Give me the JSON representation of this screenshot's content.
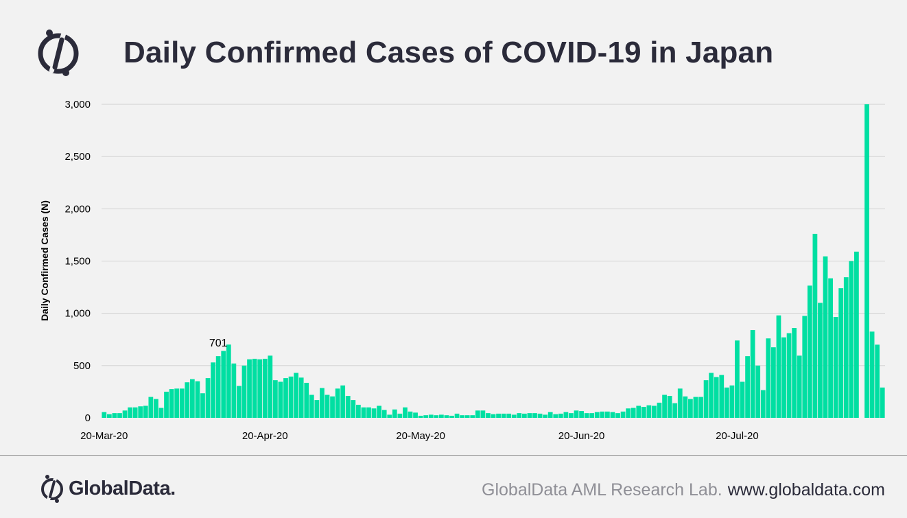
{
  "header": {
    "title": "Daily Confirmed Cases of COVID-19 in Japan"
  },
  "footer": {
    "brand_name": "GlobalData.",
    "source_lab": "GlobalData AML Research Lab.",
    "source_url": "www.globaldata.com"
  },
  "colors": {
    "bar": "#00dfa2",
    "title": "#2b2b3a",
    "grid": "#d0d0d0",
    "background": "#f2f2f2"
  },
  "icons": [
    "globaldata-logo-icon",
    "globaldata-brand-icon"
  ],
  "chart_data": {
    "type": "bar",
    "title": "Daily Confirmed Cases of COVID-19 in Japan",
    "xlabel": "",
    "ylabel": "Daily Confirmed Cases (N)",
    "ylim": [
      0,
      3000
    ],
    "yticks": [
      0,
      500,
      1000,
      1500,
      2000,
      2500,
      3000
    ],
    "ytick_labels": [
      "0",
      "500",
      "1,000",
      "1,500",
      "2,000",
      "2,500",
      "3,000"
    ],
    "xtick_labels": [
      {
        "label": "20-Mar-20",
        "index": 0
      },
      {
        "label": "20-Apr-20",
        "index": 31
      },
      {
        "label": "20-May-20",
        "index": 61
      },
      {
        "label": "20-Jun-20",
        "index": 92
      },
      {
        "label": "20-Jul-20",
        "index": 122
      }
    ],
    "annotations": [
      {
        "text": "701",
        "index": 22
      }
    ],
    "grid": true,
    "start_date": "20-Mar-20",
    "values": [
      55,
      35,
      45,
      45,
      70,
      100,
      100,
      110,
      115,
      200,
      180,
      95,
      250,
      275,
      280,
      280,
      340,
      370,
      350,
      235,
      380,
      530,
      590,
      640,
      701,
      520,
      305,
      500,
      560,
      565,
      560,
      565,
      595,
      360,
      345,
      380,
      395,
      430,
      385,
      335,
      220,
      170,
      285,
      220,
      205,
      280,
      310,
      210,
      170,
      125,
      100,
      100,
      90,
      115,
      75,
      30,
      80,
      40,
      100,
      60,
      50,
      20,
      25,
      30,
      25,
      30,
      25,
      20,
      40,
      25,
      25,
      25,
      70,
      70,
      45,
      35,
      40,
      40,
      40,
      30,
      45,
      40,
      45,
      45,
      40,
      30,
      55,
      35,
      40,
      55,
      45,
      70,
      65,
      45,
      45,
      55,
      60,
      60,
      55,
      45,
      60,
      90,
      95,
      115,
      105,
      120,
      115,
      145,
      220,
      210,
      140,
      280,
      205,
      180,
      200,
      200,
      360,
      430,
      390,
      410,
      290,
      310,
      740,
      345,
      590,
      840,
      500,
      265,
      760,
      675,
      980,
      770,
      810,
      860,
      595,
      975,
      1265,
      1760,
      1100,
      1545,
      1335,
      965,
      1240,
      1345,
      1500,
      1590,
      0,
      3000,
      825,
      700,
      290
    ]
  }
}
